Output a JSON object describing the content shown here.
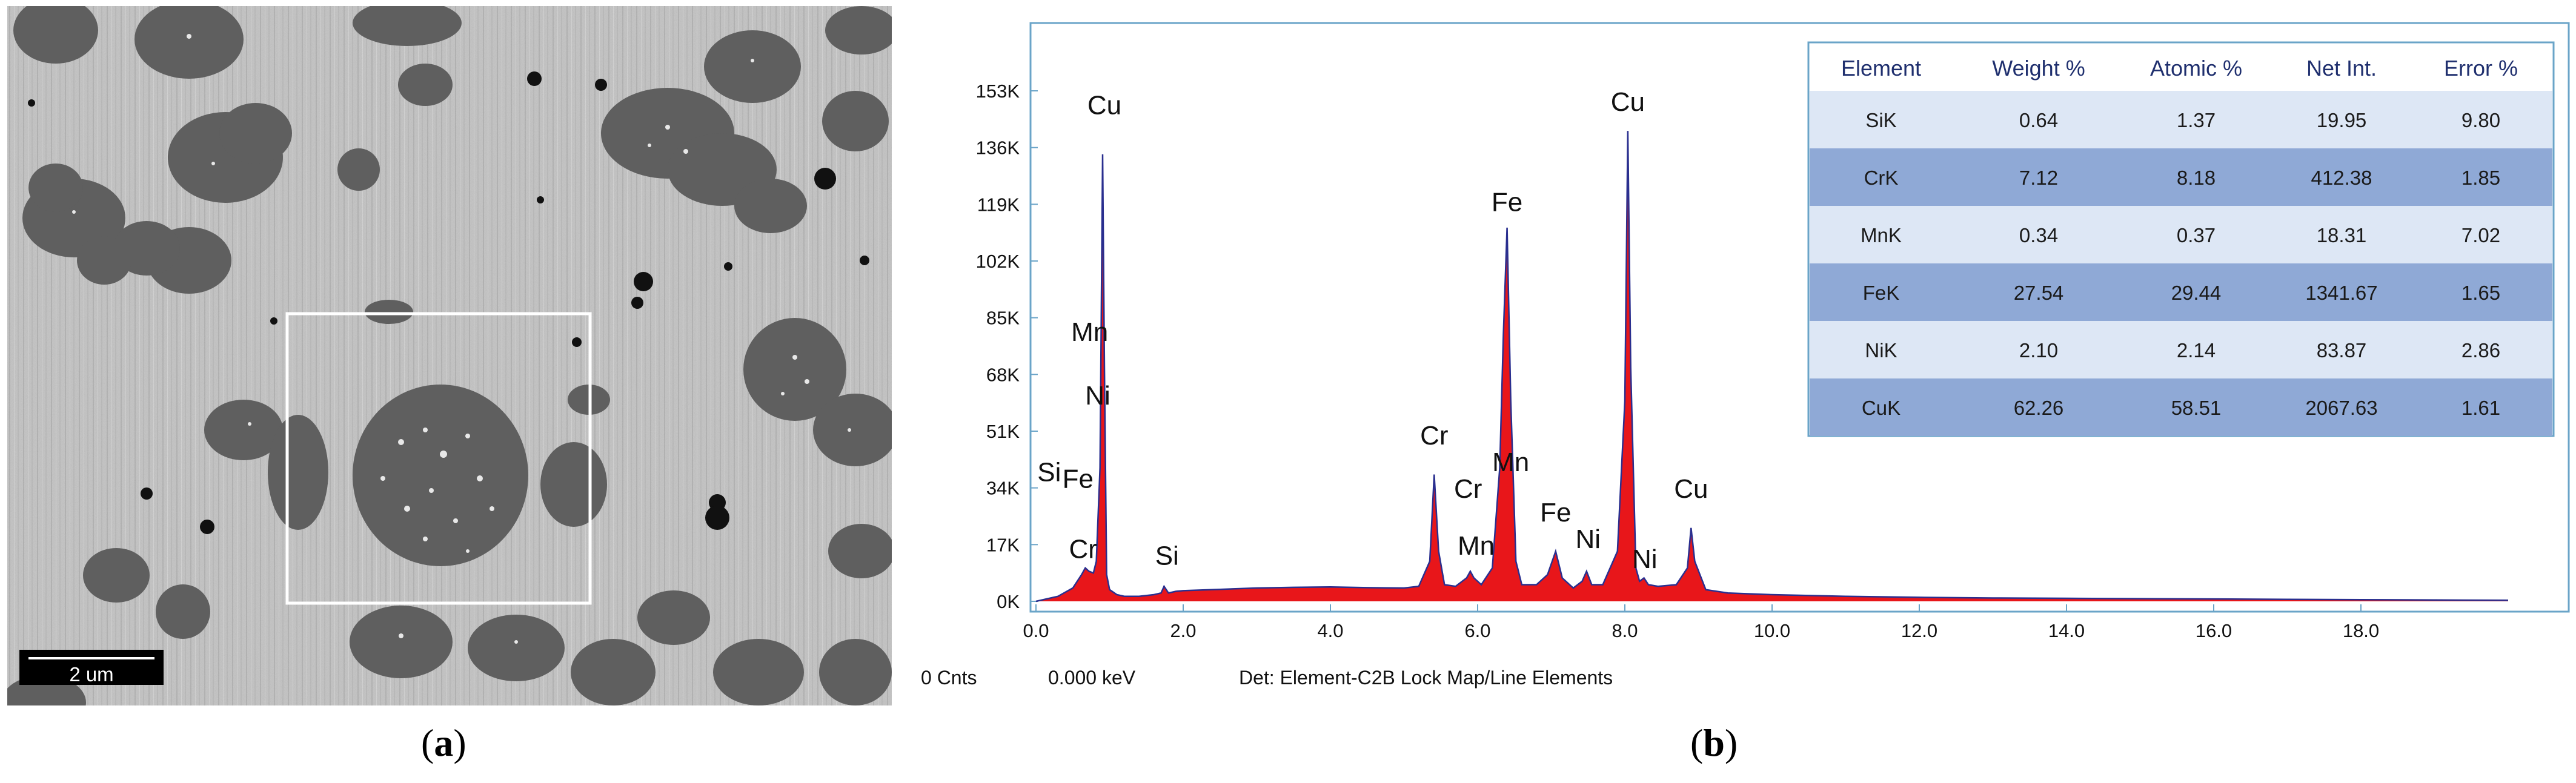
{
  "panel_a": {
    "caption": "a",
    "scale_bar_label": "2 um"
  },
  "panel_b": {
    "caption": "b"
  },
  "chart_data": {
    "type": "area",
    "x_ticks": [
      "0.0",
      "2.0",
      "4.0",
      "6.0",
      "8.0",
      "10.0",
      "12.0",
      "14.0",
      "16.0",
      "18.0"
    ],
    "y_ticks": [
      "0K",
      "17K",
      "34K",
      "51K",
      "68K",
      "85K",
      "102K",
      "119K",
      "136K",
      "153K"
    ],
    "xlim": [
      0,
      20
    ],
    "ylim": [
      0,
      160
    ],
    "y_unit_note": "counts in thousands",
    "series": [
      {
        "x": [
          0.0,
          0.3,
          0.5,
          0.62,
          0.67,
          0.72,
          0.78,
          0.82,
          0.87,
          0.905,
          0.93,
          0.96,
          1.0,
          1.1,
          1.2,
          1.4,
          1.6,
          1.7,
          1.74,
          1.8,
          1.9,
          2.0,
          2.5,
          3.0,
          3.5,
          4.0,
          4.5,
          5.0,
          5.2,
          5.35,
          5.41,
          5.47,
          5.55,
          5.7,
          5.85,
          5.9,
          5.95,
          6.05,
          6.2,
          6.3,
          6.35,
          6.4,
          6.45,
          6.52,
          6.6,
          6.8,
          6.95,
          7.06,
          7.15,
          7.3,
          7.42,
          7.48,
          7.55,
          7.7,
          7.9,
          8.0,
          8.04,
          8.08,
          8.15,
          8.2,
          8.26,
          8.32,
          8.45,
          8.7,
          8.85,
          8.9,
          8.95,
          9.1,
          9.4,
          10.0,
          11.0,
          12.0,
          13.0,
          14.0,
          15.0,
          16.0,
          17.0,
          18.0,
          19.0,
          20.0
        ],
        "y": [
          0,
          1.5,
          4,
          8,
          10,
          9,
          8.5,
          12,
          40,
          134,
          70,
          8,
          3.5,
          2,
          1.5,
          1.5,
          2,
          2.5,
          4.5,
          2.5,
          3,
          3.2,
          3.6,
          4.0,
          4.2,
          4.3,
          4.1,
          4.0,
          4.5,
          12,
          38,
          15,
          5,
          4.5,
          7,
          9,
          7,
          5,
          10,
          40,
          80,
          112,
          60,
          12,
          5,
          5,
          8,
          15,
          7,
          4,
          6,
          9,
          5,
          5,
          15,
          60,
          141,
          70,
          10,
          6,
          7,
          5,
          4.5,
          5,
          10,
          22,
          12,
          3.5,
          2.5,
          2.0,
          1.5,
          1.2,
          1.0,
          0.9,
          0.8,
          0.7,
          0.6,
          0.5,
          0.4,
          0.3
        ]
      }
    ],
    "peak_labels": [
      {
        "text": "Cu",
        "x": 0.93,
        "y": 146
      },
      {
        "text": "Mn",
        "x": 0.73,
        "y": 78
      },
      {
        "text": "Ni",
        "x": 0.84,
        "y": 59
      },
      {
        "text": "Si",
        "x": 0.18,
        "y": 36
      },
      {
        "text": "Fe",
        "x": 0.57,
        "y": 34
      },
      {
        "text": "Cr",
        "x": 0.64,
        "y": 13
      },
      {
        "text": "Si",
        "x": 1.78,
        "y": 11
      },
      {
        "text": "Cr",
        "x": 5.41,
        "y": 47
      },
      {
        "text": "Mn",
        "x": 6.45,
        "y": 39
      },
      {
        "text": "Cr",
        "x": 5.87,
        "y": 31
      },
      {
        "text": "Mn",
        "x": 5.98,
        "y": 14
      },
      {
        "text": "Fe",
        "x": 6.4,
        "y": 117
      },
      {
        "text": "Fe",
        "x": 7.06,
        "y": 24
      },
      {
        "text": "Ni",
        "x": 7.5,
        "y": 16
      },
      {
        "text": "Ni",
        "x": 8.27,
        "y": 10
      },
      {
        "text": "Cu",
        "x": 8.04,
        "y": 147
      },
      {
        "text": "Cu",
        "x": 8.9,
        "y": 31
      }
    ],
    "table": {
      "columns": [
        "Element",
        "Weight %",
        "Atomic %",
        "Net Int.",
        "Error %"
      ],
      "rows": [
        [
          "SiK",
          "0.64",
          "1.37",
          "19.95",
          "9.80"
        ],
        [
          "CrK",
          "7.12",
          "8.18",
          "412.38",
          "1.85"
        ],
        [
          "MnK",
          "0.34",
          "0.37",
          "18.31",
          "7.02"
        ],
        [
          "FeK",
          "27.54",
          "29.44",
          "1341.67",
          "1.65"
        ],
        [
          "NiK",
          "2.10",
          "2.14",
          "83.87",
          "2.86"
        ],
        [
          "CuK",
          "62.26",
          "58.51",
          "2067.63",
          "1.61"
        ]
      ]
    },
    "status_bar": {
      "counts": "0 Cnts",
      "energy": "0.000 keV",
      "detector": "Det: Element-C2B Lock Map/Line Elements"
    },
    "colors": {
      "spectrum_fill": "#e8161a",
      "spectrum_outline": "#2a2f8f",
      "frame": "#6aa4c8",
      "table_row_light": "#dde7f5",
      "table_row_dark": "#8fa9d6",
      "table_header_text": "#1f2f6e"
    }
  }
}
